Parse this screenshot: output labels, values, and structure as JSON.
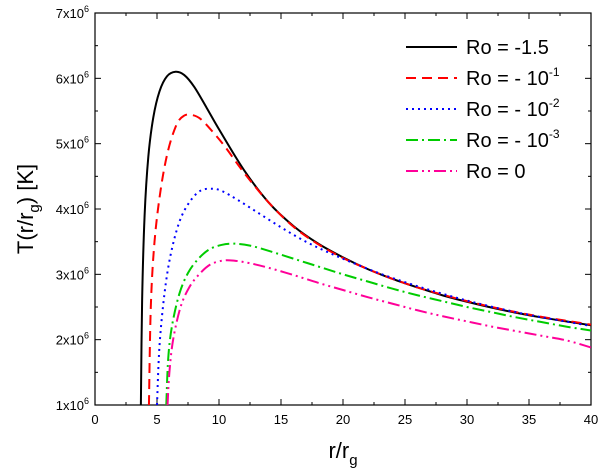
{
  "chart_data": {
    "type": "line",
    "xlabel": {
      "main": "r/r",
      "sub": "g"
    },
    "ylabel": {
      "main": "T(r/r",
      "sub": "g",
      "tail": ") [K]"
    },
    "xlim": [
      0,
      40
    ],
    "ylim": [
      1000000,
      7000000
    ],
    "x_ticks": [
      {
        "value": 0,
        "label": "0"
      },
      {
        "value": 5,
        "label": "5"
      },
      {
        "value": 10,
        "label": "10"
      },
      {
        "value": 15,
        "label": "15"
      },
      {
        "value": 20,
        "label": "20"
      },
      {
        "value": 25,
        "label": "25"
      },
      {
        "value": 30,
        "label": "30"
      },
      {
        "value": 35,
        "label": "35"
      },
      {
        "value": 40,
        "label": "40"
      }
    ],
    "y_ticks": [
      {
        "value": 1000000,
        "base": "1x10",
        "exp": "6"
      },
      {
        "value": 2000000,
        "base": "2x10",
        "exp": "6"
      },
      {
        "value": 3000000,
        "base": "3x10",
        "exp": "6"
      },
      {
        "value": 4000000,
        "base": "4x10",
        "exp": "6"
      },
      {
        "value": 5000000,
        "base": "5x10",
        "exp": "6"
      },
      {
        "value": 6000000,
        "base": "6x10",
        "exp": "6"
      },
      {
        "value": 7000000,
        "base": "7x10",
        "exp": "6"
      }
    ],
    "legend_position": "top-right",
    "series": [
      {
        "name": "Ro = -1.5",
        "legend": {
          "text": "Ro = -1.5",
          "sup": ""
        },
        "color": "#000000",
        "dash": "solid",
        "x": [
          3.7,
          3.8,
          4.0,
          4.3,
          4.7,
          5.2,
          5.8,
          6.5,
          7.2,
          8,
          9,
          10,
          12,
          14,
          16,
          18,
          20,
          22,
          24,
          26,
          28,
          30,
          32,
          34,
          36,
          38,
          40
        ],
        "y": [
          1000000,
          2600000,
          3900000,
          4800000,
          5400000,
          5800000,
          6030000,
          6100000,
          6050000,
          5870000,
          5550000,
          5220000,
          4600000,
          4100000,
          3740000,
          3470000,
          3260000,
          3080000,
          2930000,
          2800000,
          2680000,
          2580000,
          2490000,
          2410000,
          2340000,
          2280000,
          2220000
        ]
      },
      {
        "name": "Ro = - 10^-1",
        "legend": {
          "text": "Ro = - 10",
          "sup": "-1"
        },
        "color": "#ff0000",
        "dash": "10,6",
        "x": [
          4.35,
          4.5,
          4.8,
          5.3,
          5.9,
          6.6,
          7.2,
          7.8,
          8.5,
          9.5,
          10.5,
          12,
          14,
          16,
          18,
          20,
          22,
          24,
          26,
          28,
          30,
          32,
          34,
          36,
          38,
          40
        ],
        "y": [
          1000000,
          2500000,
          3500000,
          4300000,
          4900000,
          5300000,
          5430000,
          5440000,
          5380000,
          5180000,
          4950000,
          4560000,
          4100000,
          3730000,
          3460000,
          3250000,
          3080000,
          2930000,
          2800000,
          2690000,
          2590000,
          2500000,
          2420000,
          2350000,
          2290000,
          2230000
        ]
      },
      {
        "name": "Ro = - 10^-2",
        "legend": {
          "text": "Ro = - 10",
          "sup": "-2"
        },
        "color": "#0000ff",
        "dash": "2,4",
        "x": [
          5.0,
          5.2,
          5.6,
          6.1,
          6.8,
          7.6,
          8.5,
          9.5,
          10.3,
          11.5,
          13,
          15,
          17,
          19,
          21,
          23,
          25,
          27,
          29,
          31,
          33,
          35,
          37,
          40
        ],
        "y": [
          1000000,
          1900000,
          2700000,
          3300000,
          3800000,
          4100000,
          4280000,
          4310000,
          4270000,
          4140000,
          3960000,
          3720000,
          3500000,
          3320000,
          3160000,
          3010000,
          2880000,
          2760000,
          2650000,
          2550000,
          2460000,
          2380000,
          2310000,
          2210000
        ]
      },
      {
        "name": "Ro = - 10^-3",
        "legend": {
          "text": "Ro = - 10",
          "sup": "-3"
        },
        "color": "#00cc00",
        "dash": "12,4,2,4",
        "x": [
          5.75,
          5.9,
          6.2,
          6.8,
          7.5,
          8.3,
          9.2,
          10.2,
          11.2,
          12.5,
          14,
          16,
          18,
          20,
          22,
          24,
          26,
          28,
          30,
          32,
          34,
          36,
          38,
          40
        ],
        "y": [
          1000000,
          1700000,
          2200000,
          2700000,
          3020000,
          3230000,
          3380000,
          3450000,
          3470000,
          3440000,
          3360000,
          3240000,
          3120000,
          3000000,
          2890000,
          2780000,
          2680000,
          2590000,
          2500000,
          2420000,
          2340000,
          2270000,
          2200000,
          2140000
        ]
      },
      {
        "name": "Ro = 0",
        "legend": {
          "text": "Ro = 0",
          "sup": ""
        },
        "color": "#ff0099",
        "dash": "12,4,2,4,2,4",
        "x": [
          5.85,
          6.0,
          6.3,
          6.9,
          7.6,
          8.4,
          9.3,
          10.3,
          11.2,
          12.5,
          14,
          16,
          18,
          20,
          22,
          24,
          26,
          28,
          30,
          32,
          34,
          36,
          38,
          40
        ],
        "y": [
          1000000,
          1500000,
          2000000,
          2500000,
          2800000,
          3000000,
          3150000,
          3210000,
          3210000,
          3170000,
          3100000,
          2990000,
          2870000,
          2760000,
          2650000,
          2550000,
          2450000,
          2360000,
          2280000,
          2200000,
          2130000,
          2060000,
          1990000,
          1880000
        ]
      }
    ]
  }
}
